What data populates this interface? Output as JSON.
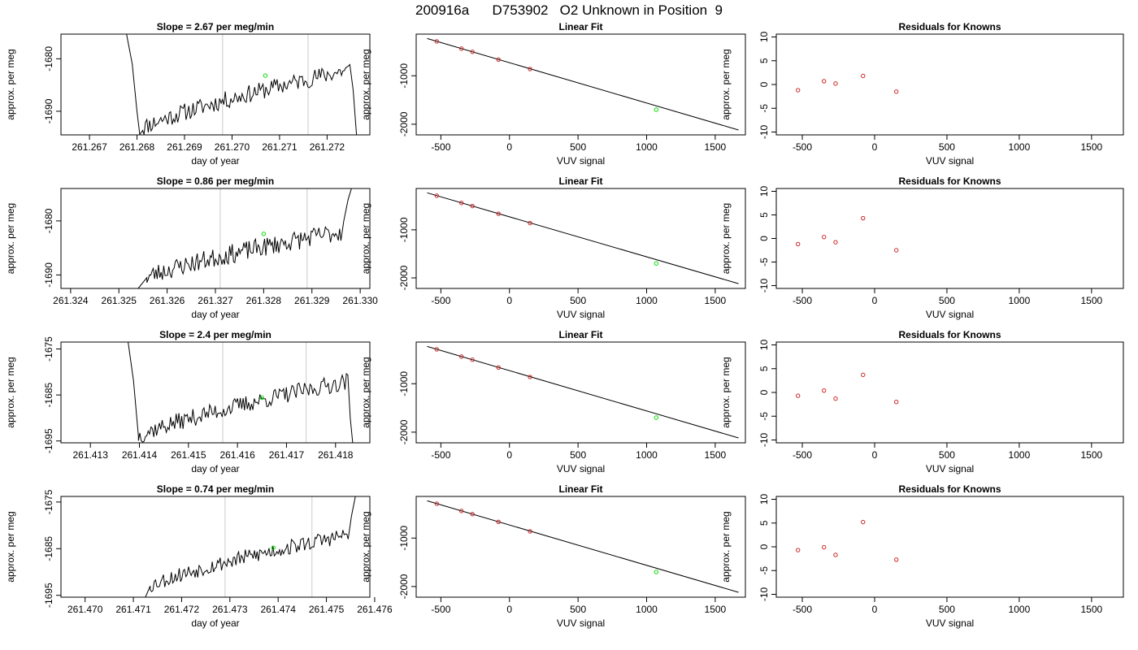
{
  "figure": {
    "title": "200916a      D753902   O2 Unknown in Position  9"
  },
  "colors": {
    "trace": "#000000",
    "vertical_marker": "#d3d3d3",
    "known_points": "#cd2626",
    "unknown_point": "#00dd00",
    "fit_line": "#000000"
  },
  "chart_data": [
    {
      "type": "line",
      "row": 0,
      "col": 0,
      "title": "Slope =  2.67  per meg/min",
      "xlabel": "day of year",
      "ylabel": "approx. per meg",
      "xlim": [
        261.2664,
        261.2729
      ],
      "ylim": [
        -1694.5,
        -1675.3
      ],
      "xticks": [
        261.267,
        261.268,
        261.269,
        261.27,
        261.271,
        261.272
      ],
      "xtick_labels": [
        "261.267",
        "261.268",
        "261.269",
        "261.270",
        "261.271",
        "261.272"
      ],
      "yticks": [
        -1680,
        -1690
      ],
      "ytick_labels": [
        "-1680",
        "-1690"
      ],
      "vlines": [
        261.2698,
        261.2716
      ],
      "marker": {
        "x": 261.2707,
        "y": -1683.2
      },
      "trace": {
        "x_start": 261.26806,
        "x_end": 261.27248,
        "y_start": -1693.5,
        "y_end": -1682.0,
        "amp": 1.7,
        "seed": 11,
        "head": [
          [
            261.26778,
            -1675.3
          ],
          [
            261.2679,
            -1681
          ],
          [
            261.268,
            -1690
          ],
          [
            261.26806,
            -1694.5
          ]
        ],
        "tail": [
          [
            261.27255,
            -1686
          ],
          [
            261.27262,
            -1694.5
          ]
        ]
      }
    },
    {
      "type": "line",
      "row": 0,
      "col": 1,
      "title": "Linear Fit",
      "xlabel": "VUV signal",
      "ylabel": "approx. per meg",
      "xlim": [
        -680,
        1720
      ],
      "ylim": [
        -2220,
        -140
      ],
      "xticks": [
        -500,
        0,
        500,
        1000,
        1500
      ],
      "xtick_labels": [
        "-500",
        "0",
        "500",
        "1000",
        "1500"
      ],
      "yticks": [
        -1000,
        -2000
      ],
      "ytick_labels": [
        "-1000",
        "-2000"
      ],
      "fit": {
        "x": [
          -600,
          1670
        ],
        "y": [
          -230,
          -2120
        ]
      },
      "knowns": {
        "x": [
          -530,
          -350,
          -270,
          -80,
          150
        ],
        "y": [
          -290,
          -440,
          -505,
          -665,
          -860
        ]
      },
      "unknown": {
        "x": [
          1070
        ],
        "y": [
          -1700
        ]
      }
    },
    {
      "type": "scatter",
      "row": 0,
      "col": 2,
      "title": "Residuals for Knowns",
      "xlabel": "VUV signal",
      "ylabel": "approx. per meg",
      "xlim": [
        -680,
        1720
      ],
      "ylim": [
        -10.6,
        10.6
      ],
      "xticks": [
        -500,
        0,
        500,
        1000,
        1500
      ],
      "xtick_labels": [
        "-500",
        "0",
        "500",
        "1000",
        "1500"
      ],
      "yticks": [
        10,
        5,
        0,
        -5,
        -10
      ],
      "ytick_labels": [
        "10",
        "5",
        "0",
        "-5",
        "-10"
      ],
      "points": {
        "x": [
          -530,
          -350,
          -270,
          -80,
          150
        ],
        "y": [
          -1.2,
          0.7,
          0.2,
          1.8,
          -1.5
        ]
      }
    },
    {
      "type": "line",
      "row": 1,
      "col": 0,
      "title": "Slope =  0.86  per meg/min",
      "xlabel": "day of year",
      "ylabel": "approx. per meg",
      "xlim": [
        261.3238,
        261.3302
      ],
      "ylim": [
        -1692.5,
        -1674.0
      ],
      "xticks": [
        261.324,
        261.325,
        261.326,
        261.327,
        261.328,
        261.329,
        261.33
      ],
      "xtick_labels": [
        "261.324",
        "261.325",
        "261.326",
        "261.327",
        "261.328",
        "261.329",
        "261.330"
      ],
      "yticks": [
        -1680,
        -1690
      ],
      "ytick_labels": [
        "-1680",
        "-1690"
      ],
      "vlines": [
        261.3271,
        261.3289
      ],
      "marker": {
        "x": 261.328,
        "y": -1682.4
      },
      "trace": {
        "x_start": 261.32558,
        "x_end": 261.3296,
        "y_start": -1690.5,
        "y_end": -1682.0,
        "amp": 1.8,
        "seed": 23,
        "head": [
          [
            261.3254,
            -1692.5
          ],
          [
            261.32558,
            -1690.5
          ]
        ],
        "tail": [
          [
            261.32966,
            -1680
          ],
          [
            261.32975,
            -1676
          ],
          [
            261.32982,
            -1674
          ]
        ]
      }
    },
    {
      "type": "line",
      "row": 1,
      "col": 1,
      "title": "Linear Fit",
      "xlabel": "VUV signal",
      "ylabel": "approx. per meg",
      "xlim": [
        -680,
        1720
      ],
      "ylim": [
        -2220,
        -140
      ],
      "xticks": [
        -500,
        0,
        500,
        1000,
        1500
      ],
      "xtick_labels": [
        "-500",
        "0",
        "500",
        "1000",
        "1500"
      ],
      "yticks": [
        -1000,
        -2000
      ],
      "ytick_labels": [
        "-1000",
        "-2000"
      ],
      "fit": {
        "x": [
          -600,
          1670
        ],
        "y": [
          -230,
          -2120
        ]
      },
      "knowns": {
        "x": [
          -530,
          -350,
          -270,
          -80,
          150
        ],
        "y": [
          -290,
          -440,
          -505,
          -665,
          -860
        ]
      },
      "unknown": {
        "x": [
          1070
        ],
        "y": [
          -1700
        ]
      }
    },
    {
      "type": "scatter",
      "row": 1,
      "col": 2,
      "title": "Residuals for Knowns",
      "xlabel": "VUV signal",
      "ylabel": "approx. per meg",
      "xlim": [
        -680,
        1720
      ],
      "ylim": [
        -10.6,
        10.6
      ],
      "xticks": [
        -500,
        0,
        500,
        1000,
        1500
      ],
      "xtick_labels": [
        "-500",
        "0",
        "500",
        "1000",
        "1500"
      ],
      "yticks": [
        10,
        5,
        0,
        -5,
        -10
      ],
      "ytick_labels": [
        "10",
        "5",
        "0",
        "-5",
        "-10"
      ],
      "points": {
        "x": [
          -530,
          -350,
          -270,
          -80,
          150
        ],
        "y": [
          -1.2,
          0.3,
          -0.8,
          4.3,
          -2.5
        ]
      }
    },
    {
      "type": "line",
      "row": 2,
      "col": 0,
      "title": "Slope =  2.4  per meg/min",
      "xlabel": "day of year",
      "ylabel": "approx. per meg",
      "xlim": [
        261.4124,
        261.4187
      ],
      "ylim": [
        -1695.4,
        -1673.5
      ],
      "xticks": [
        261.413,
        261.414,
        261.415,
        261.416,
        261.417,
        261.418
      ],
      "xtick_labels": [
        "261.413",
        "261.414",
        "261.415",
        "261.416",
        "261.417",
        "261.418"
      ],
      "yticks": [
        -1675,
        -1685,
        -1695
      ],
      "ytick_labels": [
        "-1675",
        "-1685",
        "-1695"
      ],
      "vlines": [
        261.4157,
        261.4174
      ],
      "marker": {
        "x": 261.4165,
        "y": -1685.6
      },
      "trace": {
        "x_start": 261.41398,
        "x_end": 261.41825,
        "y_start": -1694.0,
        "y_end": -1682.0,
        "amp": 1.9,
        "seed": 37,
        "head": [
          [
            261.41377,
            -1673.5
          ],
          [
            261.41388,
            -1682
          ],
          [
            261.41398,
            -1694
          ]
        ],
        "tail": [
          [
            261.4183,
            -1690
          ],
          [
            261.41835,
            -1695.4
          ]
        ]
      }
    },
    {
      "type": "line",
      "row": 2,
      "col": 1,
      "title": "Linear Fit",
      "xlabel": "VUV signal",
      "ylabel": "approx. per meg",
      "xlim": [
        -680,
        1720
      ],
      "ylim": [
        -2220,
        -140
      ],
      "xticks": [
        -500,
        0,
        500,
        1000,
        1500
      ],
      "xtick_labels": [
        "-500",
        "0",
        "500",
        "1000",
        "1500"
      ],
      "yticks": [
        -1000,
        -2000
      ],
      "ytick_labels": [
        "-1000",
        "-2000"
      ],
      "fit": {
        "x": [
          -600,
          1670
        ],
        "y": [
          -230,
          -2120
        ]
      },
      "knowns": {
        "x": [
          -530,
          -350,
          -270,
          -80,
          150
        ],
        "y": [
          -290,
          -440,
          -505,
          -665,
          -860
        ]
      },
      "unknown": {
        "x": [
          1070
        ],
        "y": [
          -1700
        ]
      }
    },
    {
      "type": "scatter",
      "row": 2,
      "col": 2,
      "title": "Residuals for Knowns",
      "xlabel": "VUV signal",
      "ylabel": "approx. per meg",
      "xlim": [
        -680,
        1720
      ],
      "ylim": [
        -10.6,
        10.6
      ],
      "xticks": [
        -500,
        0,
        500,
        1000,
        1500
      ],
      "xtick_labels": [
        "-500",
        "0",
        "500",
        "1000",
        "1500"
      ],
      "yticks": [
        10,
        5,
        0,
        -5,
        -10
      ],
      "ytick_labels": [
        "10",
        "5",
        "0",
        "-5",
        "-10"
      ],
      "points": {
        "x": [
          -530,
          -350,
          -270,
          -80,
          150
        ],
        "y": [
          -0.7,
          0.4,
          -1.3,
          3.7,
          -2.0
        ]
      }
    },
    {
      "type": "line",
      "row": 3,
      "col": 0,
      "title": "Slope =  0.74  per meg/min",
      "xlabel": "day of year",
      "ylabel": "approx. per meg",
      "xlim": [
        261.4695,
        261.4759
      ],
      "ylim": [
        -1695.4,
        -1673.8
      ],
      "xticks": [
        261.47,
        261.471,
        261.472,
        261.473,
        261.474,
        261.475,
        261.476
      ],
      "xtick_labels": [
        "261.470",
        "261.471",
        "261.472",
        "261.473",
        "261.474",
        "261.475",
        "261.476"
      ],
      "yticks": [
        -1675,
        -1685,
        -1695
      ],
      "ytick_labels": [
        "-1675",
        "-1685",
        "-1695"
      ],
      "vlines": [
        261.4729,
        261.4747
      ],
      "marker": {
        "x": 261.4739,
        "y": -1684.8
      },
      "trace": {
        "x_start": 261.47135,
        "x_end": 261.47545,
        "y_start": -1693.0,
        "y_end": -1682.0,
        "amp": 1.7,
        "seed": 53,
        "head": [
          [
            261.47125,
            -1695.4
          ],
          [
            261.47135,
            -1693
          ]
        ],
        "tail": [
          [
            261.47552,
            -1678
          ],
          [
            261.4756,
            -1673.8
          ]
        ]
      }
    },
    {
      "type": "line",
      "row": 3,
      "col": 1,
      "title": "Linear Fit",
      "xlabel": "VUV signal",
      "ylabel": "approx. per meg",
      "xlim": [
        -680,
        1720
      ],
      "ylim": [
        -2220,
        -140
      ],
      "xticks": [
        -500,
        0,
        500,
        1000,
        1500
      ],
      "xtick_labels": [
        "-500",
        "0",
        "500",
        "1000",
        "1500"
      ],
      "yticks": [
        -1000,
        -2000
      ],
      "ytick_labels": [
        "-1000",
        "-2000"
      ],
      "fit": {
        "x": [
          -600,
          1670
        ],
        "y": [
          -230,
          -2120
        ]
      },
      "knowns": {
        "x": [
          -530,
          -350,
          -270,
          -80,
          150
        ],
        "y": [
          -290,
          -440,
          -505,
          -665,
          -860
        ]
      },
      "unknown": {
        "x": [
          1070
        ],
        "y": [
          -1700
        ]
      }
    },
    {
      "type": "scatter",
      "row": 3,
      "col": 2,
      "title": "Residuals for Knowns",
      "xlabel": "VUV signal",
      "ylabel": "approx. per meg",
      "xlim": [
        -680,
        1720
      ],
      "ylim": [
        -10.6,
        10.6
      ],
      "xticks": [
        -500,
        0,
        500,
        1000,
        1500
      ],
      "xtick_labels": [
        "-500",
        "0",
        "500",
        "1000",
        "1500"
      ],
      "yticks": [
        10,
        5,
        0,
        -5,
        -10
      ],
      "ytick_labels": [
        "10",
        "5",
        "0",
        "-5",
        "-10"
      ],
      "points": {
        "x": [
          -530,
          -350,
          -270,
          -80,
          150
        ],
        "y": [
          -0.7,
          -0.1,
          -1.7,
          5.2,
          -2.7
        ]
      }
    }
  ]
}
